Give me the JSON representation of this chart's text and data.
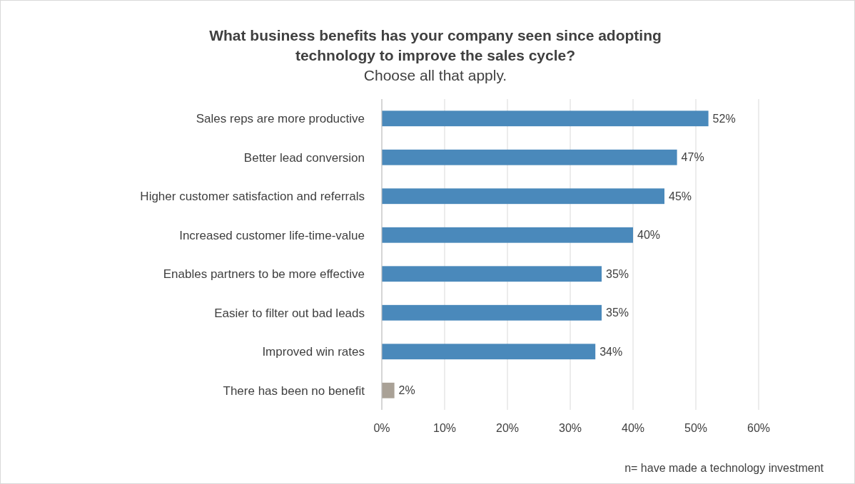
{
  "chart_data": {
    "type": "bar",
    "orientation": "horizontal",
    "title": "What business benefits has your company seen since adopting technology to improve the sales cycle?",
    "subtitle": "Choose all that apply.",
    "categories": [
      "Sales reps are more productive",
      "Better lead conversion",
      "Higher customer satisfaction and referrals",
      "Increased customer life-time-value",
      "Enables partners to be more effective",
      "Easier to filter out bad leads",
      "Improved win rates",
      "There has been no benefit"
    ],
    "values": [
      52,
      47,
      45,
      40,
      35,
      35,
      34,
      2
    ],
    "colors": [
      "#4a89bb",
      "#4a89bb",
      "#4a89bb",
      "#4a89bb",
      "#4a89bb",
      "#4a89bb",
      "#4a89bb",
      "#a9a196"
    ],
    "value_labels": [
      "52%",
      "47%",
      "45%",
      "40%",
      "35%",
      "35%",
      "34%",
      "2%"
    ],
    "xlim": [
      0,
      60
    ],
    "xticks": [
      {
        "value": 0,
        "label": "0%"
      },
      {
        "value": 10,
        "label": "10%"
      },
      {
        "value": 20,
        "label": "20%"
      },
      {
        "value": 30,
        "label": "30%"
      },
      {
        "value": 40,
        "label": "40%"
      },
      {
        "value": 50,
        "label": "50%"
      },
      {
        "value": 60,
        "label": "60%"
      }
    ],
    "grid": "x",
    "annotations": [
      "n= have made a technology investment"
    ]
  }
}
